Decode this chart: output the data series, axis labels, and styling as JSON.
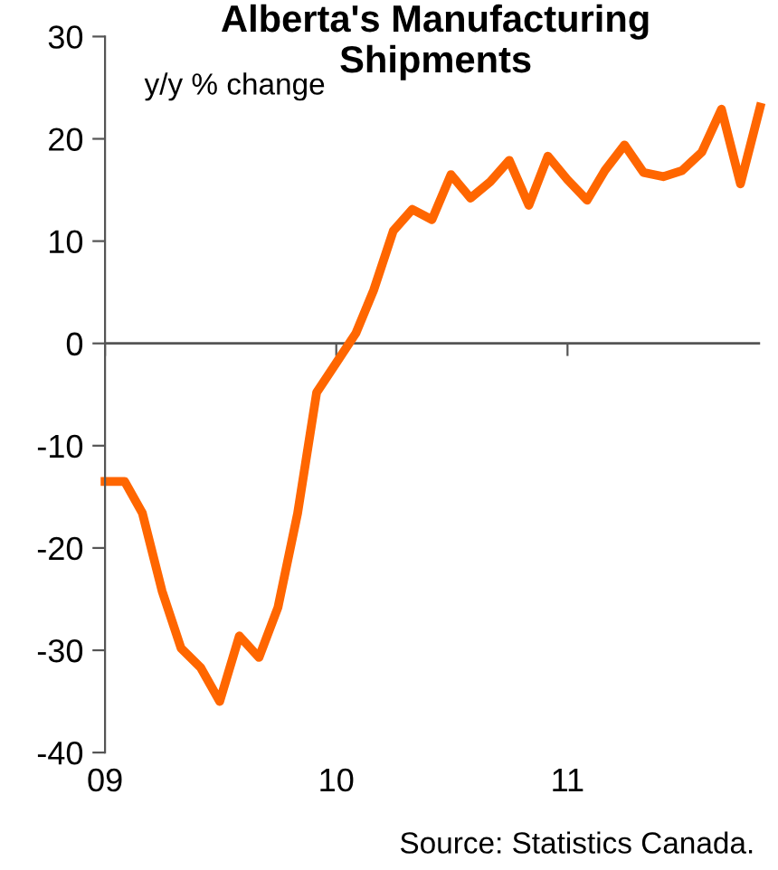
{
  "chart_data": {
    "type": "line",
    "title": "Alberta's Manufacturing\nShipments",
    "ylabel": "y/y % change",
    "x": [
      "2009-01",
      "2009-02",
      "2009-03",
      "2009-04",
      "2009-05",
      "2009-06",
      "2009-07",
      "2009-08",
      "2009-09",
      "2009-10",
      "2009-11",
      "2009-12",
      "2010-01",
      "2010-02",
      "2010-03",
      "2010-04",
      "2010-05",
      "2010-06",
      "2010-07",
      "2010-08",
      "2010-09",
      "2010-10",
      "2010-11",
      "2010-12",
      "2011-01",
      "2011-02",
      "2011-03",
      "2011-04",
      "2011-05",
      "2011-06",
      "2011-07",
      "2011-08",
      "2011-09",
      "2011-10",
      "2011-11"
    ],
    "series": [
      {
        "color": "#ff6600",
        "values": [
          -13.5,
          -13.5,
          -16.6,
          -24.2,
          -29.8,
          -31.7,
          -35,
          -28.6,
          -30.7,
          -25.8,
          -16.6,
          -4.8,
          -1.9,
          1,
          5.2,
          11,
          13.1,
          12.1,
          16.5,
          14.2,
          15.8,
          17.9,
          13.5,
          18.3,
          16,
          14,
          16.9,
          19.4,
          16.7,
          16.3,
          16.9,
          18.7,
          22.9,
          15.6,
          23.1
        ]
      }
    ],
    "xlim": [
      "2009-01",
      "2011-11"
    ],
    "xticks": [
      {
        "value": "2009-01",
        "label": "09"
      },
      {
        "value": "2010-01",
        "label": "10"
      },
      {
        "value": "2011-01",
        "label": "11"
      }
    ],
    "ylim": [
      -40,
      30
    ],
    "yticks": [
      -40,
      -30,
      -20,
      -10,
      0,
      10,
      20,
      30
    ],
    "grid": false,
    "ref_lines": [
      {
        "axis": "y",
        "value": 0,
        "color": "#555555"
      }
    ],
    "marker": "none",
    "line_style": "solid",
    "annotations": [
      "Source: Statistics Canada."
    ]
  }
}
